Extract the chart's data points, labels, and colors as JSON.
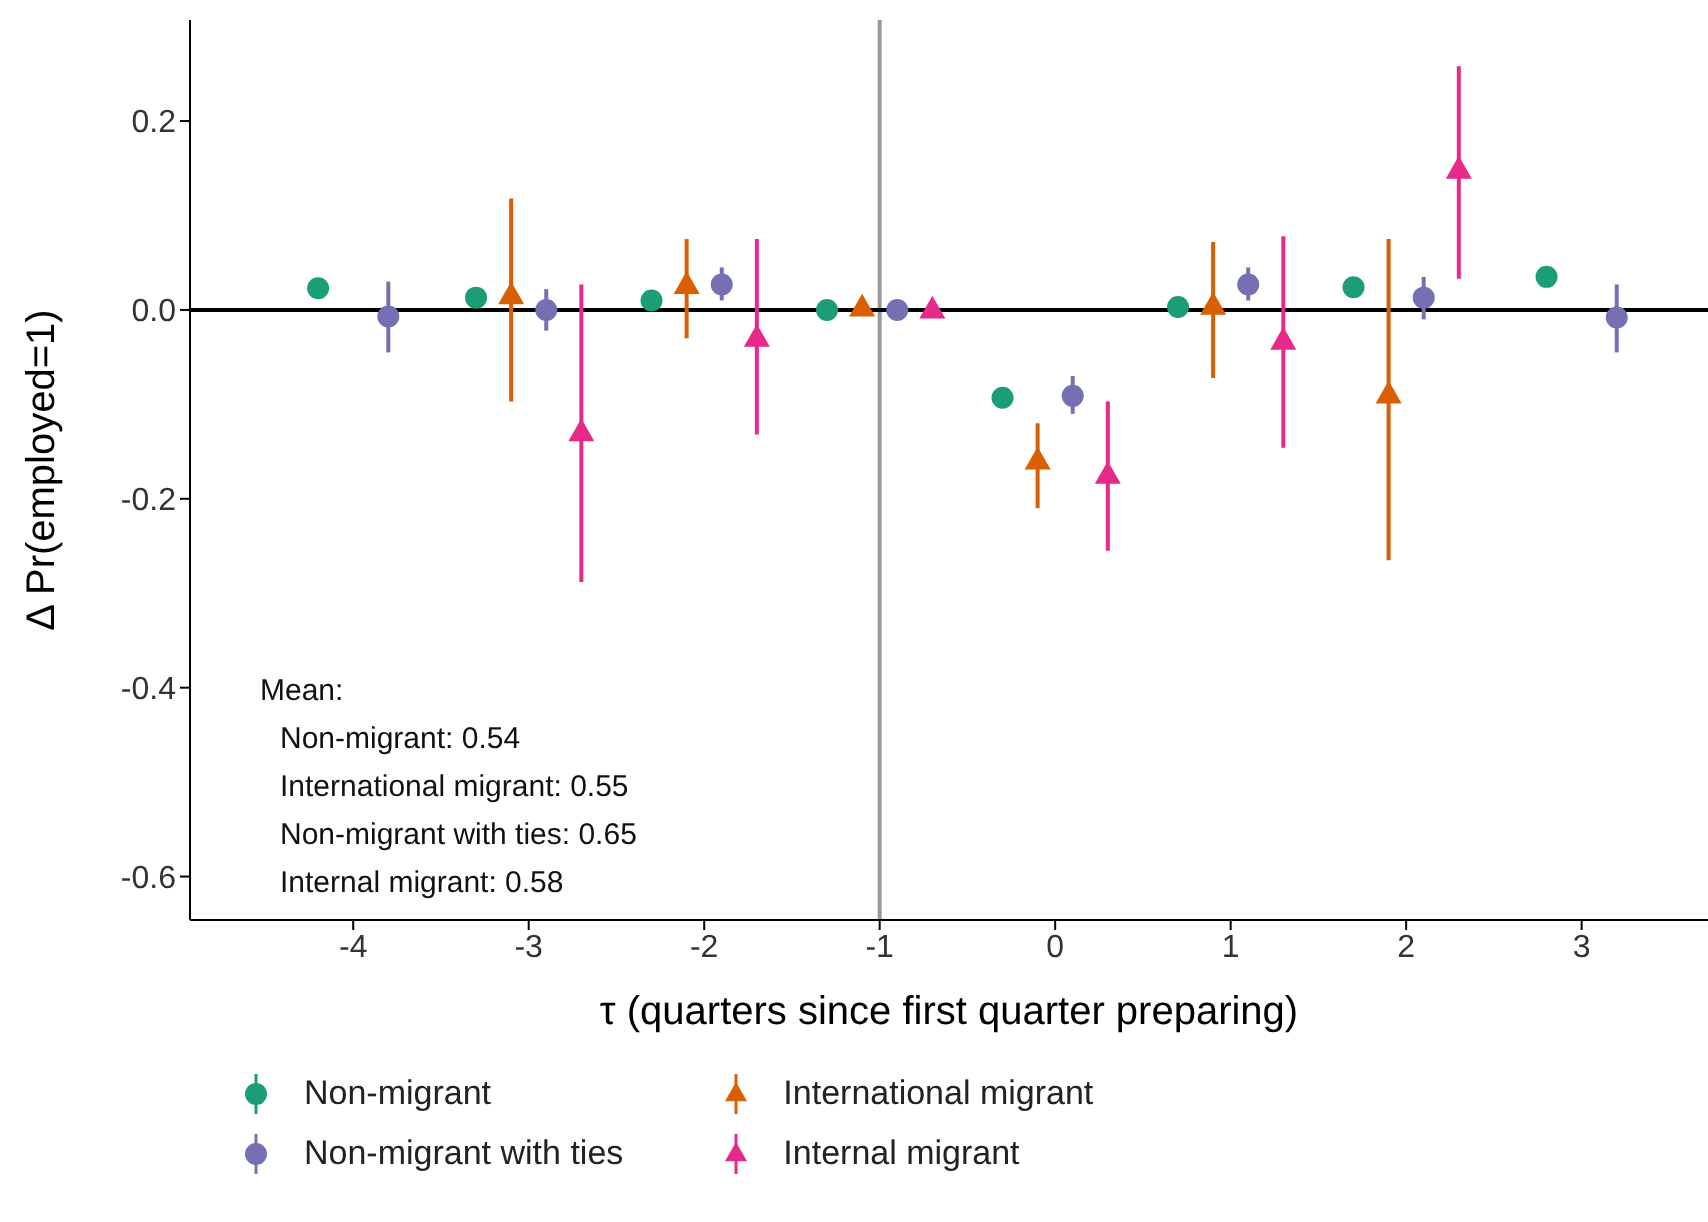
{
  "chart_data": {
    "type": "scatter",
    "xlabel": "τ (quarters since first quarter preparing)",
    "ylabel": "Δ Pr(employed=1)",
    "xlim": [
      -4.93,
      3.72
    ],
    "xticks": [
      -4,
      -3,
      -2,
      -1,
      0,
      1,
      2,
      3
    ],
    "ylim": [
      -0.646,
      0.307
    ],
    "yticks": [
      {
        "value": 0.2,
        "label": "0.2"
      },
      {
        "value": 0,
        "label": "0.0"
      },
      {
        "value": -0.2,
        "label": "-0.2"
      },
      {
        "value": -0.4,
        "label": "-0.4"
      },
      {
        "value": -0.6,
        "label": "-0.6"
      }
    ],
    "grid": false,
    "legend": "bottom",
    "ref_lines": [
      {
        "axis": "x",
        "value": -1,
        "color": "#999999"
      },
      {
        "axis": "y",
        "value": 0,
        "color": "#000000"
      }
    ],
    "annotations": [
      "Mean:",
      "Non-migrant: 0.54",
      "International migrant: 0.55",
      "Non-migrant with ties: 0.65",
      "Internal migrant: 0.58"
    ],
    "series": [
      {
        "name": "Non-migrant",
        "color": "#1b9e77",
        "marker": "circle",
        "x": [
          -4.2,
          -3.3,
          -2.3,
          -1.3,
          -0.3,
          0.7,
          1.7,
          2.8
        ],
        "values": [
          0.023,
          0.013,
          0.01,
          0,
          -0.093,
          0.003,
          0.024,
          0.035
        ],
        "errors": [
          [
            0.013,
            0.033
          ],
          [
            0.004,
            0.022
          ],
          [
            0.001,
            0.019
          ],
          null,
          [
            -0.102,
            -0.084
          ],
          [
            -0.006,
            0.012
          ],
          [
            0.015,
            0.033
          ],
          [
            0.025,
            0.045
          ]
        ]
      },
      {
        "name": "Non-migrant with ties",
        "color": "#7570b3",
        "marker": "circle",
        "x": [
          -3.8,
          -2.9,
          -1.9,
          -0.9,
          0.1,
          1.1,
          2.1,
          3.2
        ],
        "values": [
          -0.007,
          0,
          0.027,
          0,
          -0.091,
          0.027,
          0.013,
          -0.008
        ],
        "errors": [
          [
            -0.045,
            0.03
          ],
          [
            -0.022,
            0.022
          ],
          [
            0.01,
            0.045
          ],
          null,
          [
            -0.11,
            -0.07
          ],
          [
            0.01,
            0.045
          ],
          [
            -0.01,
            0.035
          ],
          [
            -0.045,
            0.027
          ]
        ]
      },
      {
        "name": "International migrant",
        "color": "#d95f02",
        "marker": "triangle",
        "x": [
          -3.1,
          -2.1,
          -1.1,
          -0.1,
          0.9,
          1.9
        ],
        "values": [
          0.015,
          0.026,
          0.002,
          -0.16,
          0.004,
          -0.09
        ],
        "errors": [
          [
            -0.097,
            0.118
          ],
          [
            -0.03,
            0.075
          ],
          null,
          [
            -0.21,
            -0.12
          ],
          [
            -0.072,
            0.072
          ],
          [
            -0.265,
            0.075
          ]
        ]
      },
      {
        "name": "Internal migrant",
        "color": "#e7298a",
        "marker": "triangle",
        "x": [
          -2.7,
          -1.7,
          -0.7,
          0.3,
          1.3,
          2.3
        ],
        "values": [
          -0.13,
          -0.03,
          0,
          -0.175,
          -0.033,
          0.148
        ],
        "errors": [
          [
            -0.288,
            0.027
          ],
          [
            -0.132,
            0.075
          ],
          null,
          [
            -0.255,
            -0.097
          ],
          [
            -0.146,
            0.078
          ],
          [
            0.033,
            0.258
          ]
        ]
      }
    ]
  }
}
